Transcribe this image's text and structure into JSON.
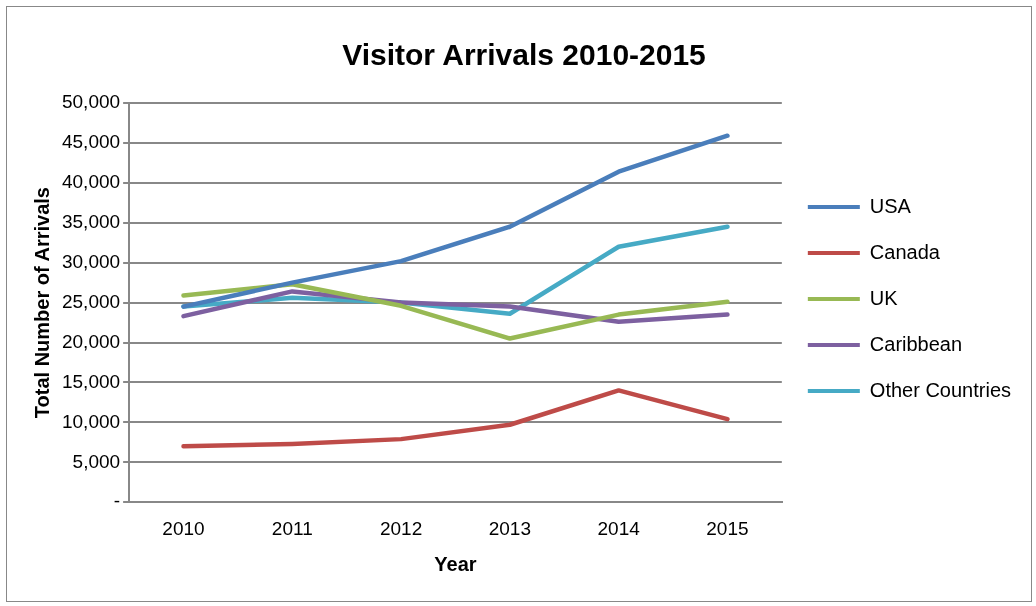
{
  "chart_data": {
    "type": "line",
    "title": "Visitor Arrivals 2010-2015",
    "xlabel": "Year",
    "ylabel": "Total Number of Arrivals",
    "categories": [
      "2010",
      "2011",
      "2012",
      "2013",
      "2014",
      "2015"
    ],
    "series": [
      {
        "name": "USA",
        "color": "#4a7ebb",
        "values": [
          24500,
          27500,
          30200,
          34500,
          41400,
          45900
        ]
      },
      {
        "name": "Canada",
        "color": "#be4b48",
        "values": [
          7000,
          7300,
          7900,
          9700,
          14000,
          10400
        ]
      },
      {
        "name": "UK",
        "color": "#98b954",
        "values": [
          25900,
          27300,
          24600,
          20500,
          23500,
          25100
        ]
      },
      {
        "name": "Caribbean",
        "color": "#7d60a0",
        "values": [
          23300,
          26400,
          25000,
          24500,
          22600,
          23500
        ]
      },
      {
        "name": "Other Countries",
        "color": "#46aac5",
        "values": [
          24500,
          25600,
          25000,
          23600,
          32000,
          34500
        ]
      }
    ],
    "ylim": [
      0,
      50000
    ],
    "yticks": [
      {
        "value": 0,
        "label": "-"
      },
      {
        "value": 5000,
        "label": "5,000"
      },
      {
        "value": 10000,
        "label": "10,000"
      },
      {
        "value": 15000,
        "label": "15,000"
      },
      {
        "value": 20000,
        "label": "20,000"
      },
      {
        "value": 25000,
        "label": "25,000"
      },
      {
        "value": 30000,
        "label": "30,000"
      },
      {
        "value": 35000,
        "label": "35,000"
      },
      {
        "value": 40000,
        "label": "40,000"
      },
      {
        "value": 45000,
        "label": "45,000"
      },
      {
        "value": 50000,
        "label": "50,000"
      }
    ],
    "grid": "y",
    "legend": "right",
    "marker": "none",
    "line_style": "solid"
  }
}
